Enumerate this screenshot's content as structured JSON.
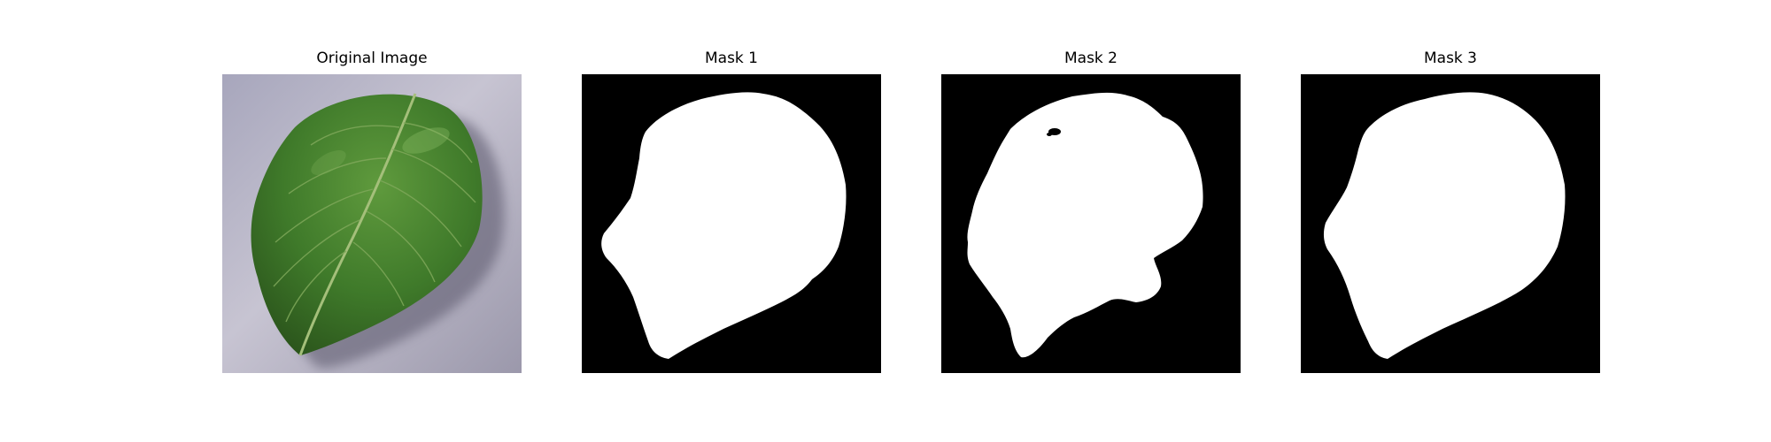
{
  "figure": {
    "panels": [
      {
        "title": "Original Image",
        "kind": "photo",
        "subject": "green-leaf-on-gray-surface"
      },
      {
        "title": "Mask 1",
        "kind": "binary-mask",
        "background_color": "#000000",
        "mask_color": "#ffffff"
      },
      {
        "title": "Mask 2",
        "kind": "binary-mask",
        "background_color": "#000000",
        "mask_color": "#ffffff"
      },
      {
        "title": "Mask 3",
        "kind": "binary-mask",
        "background_color": "#000000",
        "mask_color": "#ffffff"
      }
    ]
  },
  "colors": {
    "leaf_dark": "#2f5e1f",
    "leaf_mid": "#4f8a33",
    "leaf_vein": "#a4bf7a",
    "surface": "#b9b6c6",
    "surface_shadow": "#7f7c92"
  }
}
